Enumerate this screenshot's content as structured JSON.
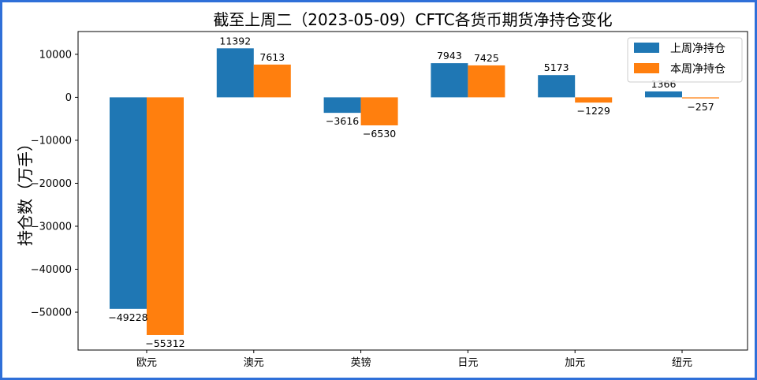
{
  "chart_data": {
    "type": "bar",
    "title": "截至上周二（2023-05-09）CFTC各货币期货净持仓变化",
    "xlabel": "",
    "ylabel": "持仓数（万手）",
    "categories": [
      "欧元",
      "澳元",
      "英镑",
      "日元",
      "加元",
      "纽元"
    ],
    "series": [
      {
        "name": "上周净持仓",
        "color": "#1f77b4",
        "values": [
          -49228,
          11392,
          -3616,
          7943,
          5173,
          1366
        ]
      },
      {
        "name": "本周净持仓",
        "color": "#ff7f0e",
        "values": [
          -55312,
          7613,
          -6530,
          7425,
          -1229,
          -257
        ]
      }
    ],
    "ylim": [
      -58800,
      15300
    ],
    "yticks": [
      10000,
      0,
      -10000,
      -20000,
      -30000,
      -40000,
      -50000
    ],
    "ytick_labels": [
      "10000",
      "0",
      "−10000",
      "−20000",
      "−30000",
      "−40000",
      "−50000"
    ],
    "data_labels": [
      [
        "−49228",
        "11392",
        "−3616",
        "7943",
        "5173",
        "1366"
      ],
      [
        "−55312",
        "7613",
        "−6530",
        "7425",
        "−1229",
        "−257"
      ]
    ],
    "grid": false,
    "legend_position": "top-right"
  }
}
